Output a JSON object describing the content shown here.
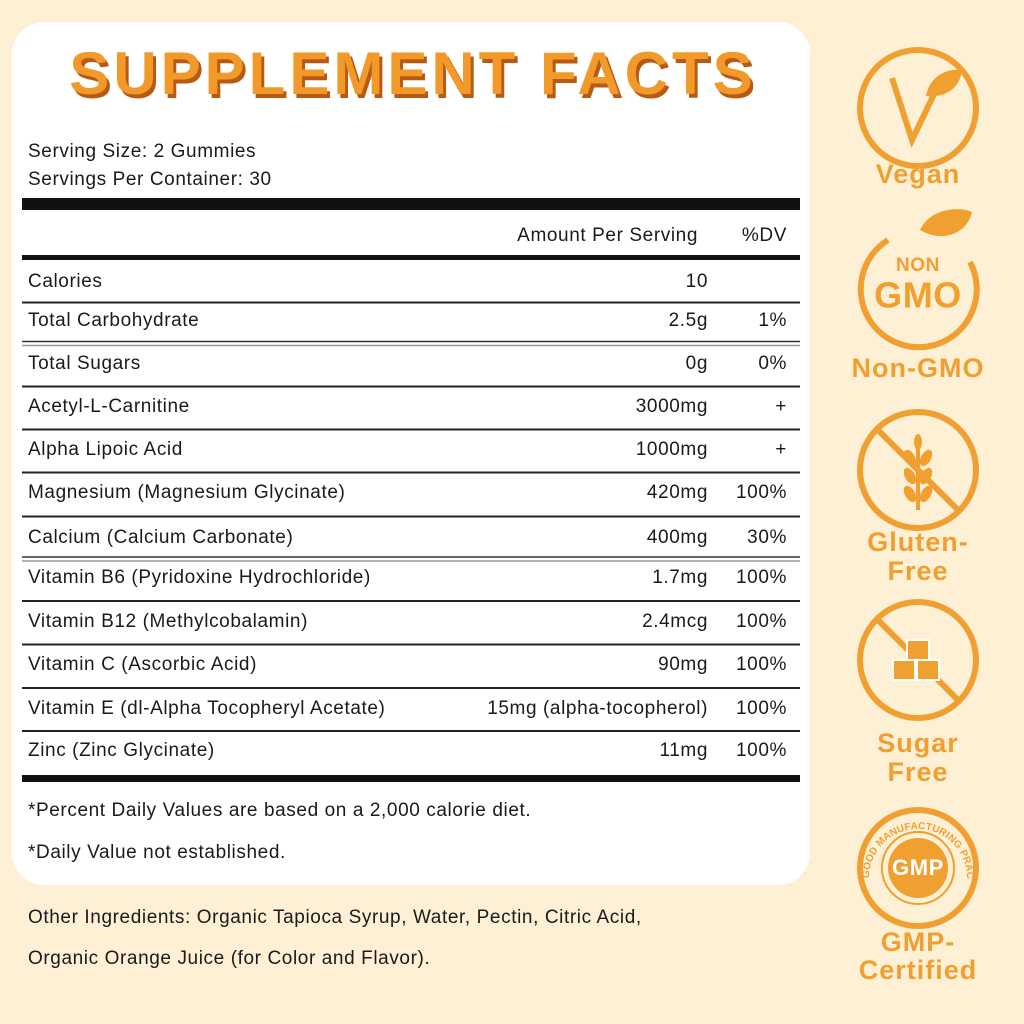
{
  "title": "SUPPLEMENT FACTS",
  "serving": [
    "Serving Size: 2 Gummies",
    "Servings Per Container: 30"
  ],
  "table": {
    "header": [
      "Amount Per Serving",
      "%DV"
    ],
    "rows": [
      [
        "Calories",
        "10"
      ],
      [
        "Total Carbohydrate",
        "2.5g",
        "1%"
      ],
      [
        "Total Sugars",
        "0g",
        "0%"
      ],
      [
        "Acetyl-L-Carnitine",
        "3000mg",
        "+"
      ],
      [
        "Alpha Lipoic Acid",
        "1000mg",
        "+"
      ],
      [
        "Magnesium (Magnesium Glycinate)",
        "420mg",
        "100%"
      ],
      [
        "Calcium (Calcium Carbonate)",
        "400mg",
        "30%"
      ],
      [
        "Vitamin B6 (Pyridoxine Hydrochloride)",
        "1.7mg",
        "100%"
      ],
      [
        "Vitamin B12 (Methylcobalamin)",
        "2.4mcg",
        "100%"
      ],
      [
        "Vitamin C (Ascorbic Acid)",
        "90mg",
        "100%"
      ],
      [
        "Vitamin E (dl-Alpha Tocopheryl Acetate)",
        "15mg (alpha-tocopherol)",
        "100%"
      ],
      [
        "Zinc (Zinc Glycinate)",
        "11mg",
        "100%"
      ]
    ]
  },
  "footnotes": [
    "*Percent Daily Values are based on a 2,000 calorie diet.",
    "*Daily Value not established."
  ],
  "other_ingredients": [
    "Other Ingredients: Organic Tapioca Syrup, Water, Pectin, Citric Acid,",
    "Organic Orange Juice (for Color and Flavor)."
  ],
  "badges": [
    {
      "label": [
        "Vegan"
      ]
    },
    {
      "icon_text": [
        "NON",
        "GMO"
      ],
      "label": [
        "Non-GMO"
      ]
    },
    {
      "label": [
        "Gluten-",
        "Free"
      ]
    },
    {
      "label": [
        "Sugar",
        "Free"
      ]
    },
    {
      "icon_text": [
        "GMP"
      ],
      "ring_text": "GOOD MANUFACTURING PRACTICE",
      "label": [
        "GMP-",
        "Certified"
      ]
    }
  ]
}
